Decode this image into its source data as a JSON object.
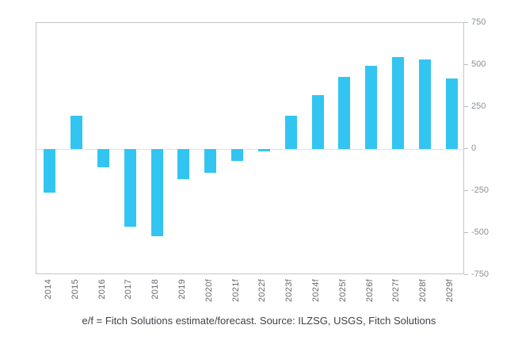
{
  "caption": "e/f = Fitch Solutions estimate/forecast. Source: ILZSG, USGS, Fitch Solutions",
  "chart_data": {
    "type": "bar",
    "title": "",
    "xlabel": "",
    "ylabel": "",
    "categories": [
      "2014",
      "2015",
      "2016",
      "2017",
      "2018",
      "2019",
      "2020f",
      "2021f",
      "2022f",
      "2023f",
      "2024f",
      "2025f",
      "2026f",
      "2027f",
      "2028f",
      "2029f"
    ],
    "values": [
      -260,
      200,
      -110,
      -460,
      -520,
      -180,
      -140,
      -70,
      -15,
      200,
      320,
      430,
      495,
      545,
      535,
      420
    ],
    "ylim": [
      -750,
      750
    ],
    "yticks": [
      750,
      500,
      250,
      0,
      -250,
      -500,
      -750
    ],
    "bar_color": "#33c5f1",
    "frame_color": "#c2c7cc",
    "grid": false,
    "legend_position": "none",
    "y_axis_side": "right",
    "x_label_rotation": 90
  }
}
